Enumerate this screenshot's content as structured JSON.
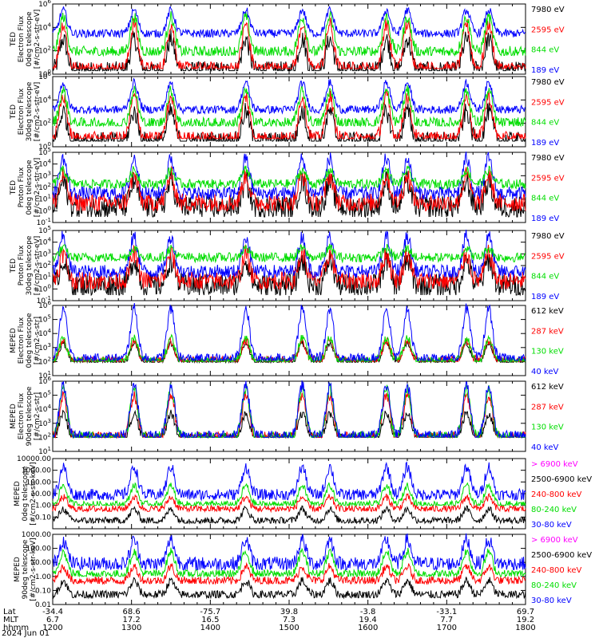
{
  "chart_data": [
    {
      "type": "line",
      "ylabel_lines": [
        "TED",
        "Electron Flux",
        "0deg telescope",
        "[#/cm2-s-str-eV]"
      ],
      "ylim": [
        1,
        1000000
      ],
      "log": true,
      "yticks": [
        {
          "v": 1,
          "label": "10^0"
        },
        {
          "v": 100,
          "label": "10^2"
        },
        {
          "v": 10000,
          "label": "10^4"
        },
        {
          "v": 1000000,
          "label": "10^6"
        }
      ],
      "legend": [
        {
          "label": "7980 eV",
          "color": "#000000"
        },
        {
          "label": "2595 eV",
          "color": "#ff0000"
        },
        {
          "label": "844 eV",
          "color": "#00dd00"
        },
        {
          "label": "189 eV",
          "color": "#0000ff"
        }
      ],
      "series": [
        {
          "color": "#0000ff",
          "base": 3000,
          "peak": 300000,
          "noise": 0.35,
          "floor": 30
        },
        {
          "color": "#00dd00",
          "base": 80,
          "peak": 80000,
          "noise": 0.5,
          "floor": 40
        },
        {
          "color": "#ff0000",
          "base": 3,
          "peak": 20000,
          "noise": 0.6,
          "floor": 3
        },
        {
          "color": "#000000",
          "base": 2,
          "peak": 1000,
          "noise": 0.8,
          "floor": 2
        }
      ]
    },
    {
      "type": "line",
      "ylabel_lines": [
        "TED",
        "Electron Flux",
        "30deg telescope",
        "[#/cm2-s-str-eV]"
      ],
      "ylim": [
        1,
        1000000
      ],
      "log": true,
      "yticks": [
        {
          "v": 1,
          "label": "10^0"
        },
        {
          "v": 100,
          "label": "10^2"
        },
        {
          "v": 10000,
          "label": "10^4"
        },
        {
          "v": 1000000,
          "label": "10^6"
        }
      ],
      "legend": [
        {
          "label": "7980 eV",
          "color": "#000000"
        },
        {
          "label": "2595 eV",
          "color": "#ff0000"
        },
        {
          "label": "844 eV",
          "color": "#00dd00"
        },
        {
          "label": "189 eV",
          "color": "#0000ff"
        }
      ],
      "series": [
        {
          "color": "#0000ff",
          "base": 1500,
          "peak": 300000,
          "noise": 0.35,
          "floor": 300
        },
        {
          "color": "#00dd00",
          "base": 100,
          "peak": 60000,
          "noise": 0.5,
          "floor": 60
        },
        {
          "color": "#ff0000",
          "base": 5,
          "peak": 20000,
          "noise": 0.6,
          "floor": 5
        },
        {
          "color": "#000000",
          "base": 3,
          "peak": 1000,
          "noise": 0.8,
          "floor": 3
        }
      ]
    },
    {
      "type": "line",
      "ylabel_lines": [
        "TED",
        "Proton Flux",
        "0deg telescope",
        "[#/cm2-s-str-eV]"
      ],
      "ylim": [
        0.1,
        100000
      ],
      "log": true,
      "yticks": [
        {
          "v": 0.1,
          "label": "10^-1"
        },
        {
          "v": 1,
          "label": "10^0"
        },
        {
          "v": 10,
          "label": "10^1"
        },
        {
          "v": 100,
          "label": "10^2"
        },
        {
          "v": 1000,
          "label": "10^3"
        },
        {
          "v": 10000,
          "label": "10^4"
        },
        {
          "v": 100000,
          "label": "10^5"
        }
      ],
      "legend": [
        {
          "label": "7980 eV",
          "color": "#000000"
        },
        {
          "label": "2595 eV",
          "color": "#ff0000"
        },
        {
          "label": "844 eV",
          "color": "#00dd00"
        },
        {
          "label": "189 eV",
          "color": "#0000ff"
        }
      ],
      "series": [
        {
          "color": "#00dd00",
          "base": 200,
          "peak": 3000,
          "noise": 0.4,
          "floor": 80
        },
        {
          "color": "#0000ff",
          "base": 30,
          "peak": 30000,
          "noise": 0.6,
          "floor": 10
        },
        {
          "color": "#ff0000",
          "base": 5,
          "peak": 1000,
          "noise": 0.8,
          "floor": 1
        },
        {
          "color": "#000000",
          "base": 2,
          "peak": 300,
          "noise": 1.0,
          "floor": 0.3
        }
      ]
    },
    {
      "type": "line",
      "ylabel_lines": [
        "TED",
        "Proton Flux",
        "30deg telescope",
        "[#/cm2-s-str-eV]"
      ],
      "ylim": [
        0.1,
        100000
      ],
      "log": true,
      "yticks": [
        {
          "v": 0.1,
          "label": "10^-1"
        },
        {
          "v": 1,
          "label": "10^0"
        },
        {
          "v": 10,
          "label": "10^1"
        },
        {
          "v": 100,
          "label": "10^2"
        },
        {
          "v": 1000,
          "label": "10^3"
        },
        {
          "v": 10000,
          "label": "10^4"
        },
        {
          "v": 100000,
          "label": "10^5"
        }
      ],
      "legend": [
        {
          "label": "7980 eV",
          "color": "#000000"
        },
        {
          "label": "2595 eV",
          "color": "#ff0000"
        },
        {
          "label": "844 eV",
          "color": "#00dd00"
        },
        {
          "label": "189 eV",
          "color": "#0000ff"
        }
      ],
      "series": [
        {
          "color": "#00dd00",
          "base": 500,
          "peak": 3000,
          "noise": 0.4,
          "floor": 100
        },
        {
          "color": "#0000ff",
          "base": 30,
          "peak": 30000,
          "noise": 0.6,
          "floor": 10
        },
        {
          "color": "#ff0000",
          "base": 5,
          "peak": 1000,
          "noise": 0.8,
          "floor": 1
        },
        {
          "color": "#000000",
          "base": 2,
          "peak": 300,
          "noise": 1.0,
          "floor": 0.3
        }
      ]
    },
    {
      "type": "line",
      "ylabel_lines": [
        "MEPED",
        "Electron Flux",
        "0deg telescope",
        "[#/cm2-s-str]"
      ],
      "ylim": [
        10,
        1000000
      ],
      "log": true,
      "yticks": [
        {
          "v": 10,
          "label": "10^1"
        },
        {
          "v": 100,
          "label": "10^2"
        },
        {
          "v": 1000,
          "label": "10^3"
        },
        {
          "v": 10000,
          "label": "10^4"
        },
        {
          "v": 100000,
          "label": "10^5"
        },
        {
          "v": 1000000,
          "label": "10^6"
        }
      ],
      "legend": [
        {
          "label": "612 keV",
          "color": "#000000"
        },
        {
          "label": "287 keV",
          "color": "#ff0000"
        },
        {
          "label": "130 keV",
          "color": "#00dd00"
        },
        {
          "label": "40 keV",
          "color": "#0000ff"
        }
      ],
      "series": [
        {
          "color": "#0000ff",
          "base": 150,
          "peak": 600000,
          "noise": 0.4,
          "floor": 120
        },
        {
          "color": "#00dd00",
          "base": 110,
          "peak": 5000,
          "noise": 0.3,
          "floor": 100
        },
        {
          "color": "#ff0000",
          "base": 120,
          "peak": 3000,
          "noise": 0.3,
          "floor": 100
        },
        {
          "color": "#000000",
          "base": 100,
          "peak": 2000,
          "noise": 0.2,
          "floor": 90
        }
      ]
    },
    {
      "type": "line",
      "ylabel_lines": [
        "MEPED",
        "Electron Flux",
        "90deg telescope",
        "[#/cm2-s-str]"
      ],
      "ylim": [
        10,
        1000000
      ],
      "log": true,
      "yticks": [
        {
          "v": 10,
          "label": "10^1"
        },
        {
          "v": 100,
          "label": "10^2"
        },
        {
          "v": 1000,
          "label": "10^3"
        },
        {
          "v": 10000,
          "label": "10^4"
        },
        {
          "v": 100000,
          "label": "10^5"
        },
        {
          "v": 1000000,
          "label": "10^6"
        }
      ],
      "legend": [
        {
          "label": "612 keV",
          "color": "#000000"
        },
        {
          "label": "287 keV",
          "color": "#ff0000"
        },
        {
          "label": "130 keV",
          "color": "#00dd00"
        },
        {
          "label": "40 keV",
          "color": "#0000ff"
        }
      ],
      "series": [
        {
          "color": "#0000ff",
          "base": 120,
          "peak": 500000,
          "noise": 0.4,
          "floor": 100
        },
        {
          "color": "#00dd00",
          "base": 100,
          "peak": 300000,
          "noise": 0.4,
          "floor": 100
        },
        {
          "color": "#ff0000",
          "base": 100,
          "peak": 100000,
          "noise": 0.4,
          "floor": 100
        },
        {
          "color": "#000000",
          "base": 100,
          "peak": 5000,
          "noise": 0.3,
          "floor": 100
        }
      ]
    },
    {
      "type": "line",
      "ylabel_lines": [
        "MEPED",
        "0deg telescope",
        "[#/cm2-s-str-keV]"
      ],
      "ylim": [
        0.01,
        10000
      ],
      "log": true,
      "yticks": [
        {
          "v": 0.1,
          "label": "0.10"
        },
        {
          "v": 1,
          "label": "1.00"
        },
        {
          "v": 10,
          "label": "10.00"
        },
        {
          "v": 100,
          "label": "100.00"
        },
        {
          "v": 1000,
          "label": "1000.00"
        },
        {
          "v": 10000,
          "label": "10000.00"
        }
      ],
      "legend": [
        {
          "label": "> 6900 keV",
          "color": "#ff00ff"
        },
        {
          "label": "2500-6900 keV",
          "color": "#000000"
        },
        {
          "label": "240-800 keV",
          "color": "#ff0000"
        },
        {
          "label": "80-240 keV",
          "color": "#00dd00"
        },
        {
          "label": "30-80 keV",
          "color": "#0000ff"
        }
      ],
      "series": [
        {
          "color": "#0000ff",
          "base": 8,
          "peak": 2000,
          "noise": 0.5,
          "floor": 3
        },
        {
          "color": "#00dd00",
          "base": 1.2,
          "peak": 50,
          "noise": 0.3,
          "floor": 1
        },
        {
          "color": "#ff0000",
          "base": 0.5,
          "peak": 5,
          "noise": 0.3,
          "floor": 0.3
        },
        {
          "color": "#000000",
          "base": 0.05,
          "peak": 0.5,
          "noise": 0.3,
          "floor": 0.03
        }
      ]
    },
    {
      "type": "line",
      "ylabel_lines": [
        "MEPED",
        "90deg telescope",
        "[#/cm2-s-str-keV]"
      ],
      "ylim": [
        0.01,
        1000
      ],
      "log": true,
      "yticks": [
        {
          "v": 0.01,
          "label": "0.01"
        },
        {
          "v": 0.1,
          "label": "0.10"
        },
        {
          "v": 1,
          "label": "1.00"
        },
        {
          "v": 10,
          "label": "10.00"
        },
        {
          "v": 100,
          "label": "100.00"
        },
        {
          "v": 1000,
          "label": "1000.00"
        }
      ],
      "legend": [
        {
          "label": "> 6900 keV",
          "color": "#ff00ff"
        },
        {
          "label": "2500-6900 keV",
          "color": "#000000"
        },
        {
          "label": "240-800 keV",
          "color": "#ff0000"
        },
        {
          "label": "80-240 keV",
          "color": "#00dd00"
        },
        {
          "label": "30-80 keV",
          "color": "#0000ff"
        }
      ],
      "series": [
        {
          "color": "#0000ff",
          "base": 8,
          "peak": 400,
          "noise": 0.5,
          "floor": 3
        },
        {
          "color": "#00dd00",
          "base": 1.5,
          "peak": 60,
          "noise": 0.3,
          "floor": 1
        },
        {
          "color": "#ff0000",
          "base": 0.5,
          "peak": 5,
          "noise": 0.3,
          "floor": 0.3
        },
        {
          "color": "#000000",
          "base": 0.05,
          "peak": 0.5,
          "noise": 0.3,
          "floor": 0.03
        }
      ]
    }
  ],
  "x_axis": {
    "rows": [
      {
        "name": "Lat",
        "values": [
          "-34.4",
          "68.6",
          "-75.7",
          "39.8",
          "-3.8",
          "-33.1",
          "69.7"
        ]
      },
      {
        "name": "MLT",
        "values": [
          "6.7",
          "17.2",
          "16.5",
          "7.3",
          "19.4",
          "7.7",
          "19.2"
        ]
      },
      {
        "name": "hhmm",
        "values": [
          "1200",
          "1300",
          "1400",
          "1500",
          "1600",
          "1700",
          "1800"
        ]
      }
    ],
    "date": "2024 Jun 01"
  },
  "peak_times_hhmm": [
    "1208",
    "1302",
    "1330",
    "1427",
    "1510",
    "1531",
    "1614",
    "1630",
    "1715",
    "1732"
  ]
}
